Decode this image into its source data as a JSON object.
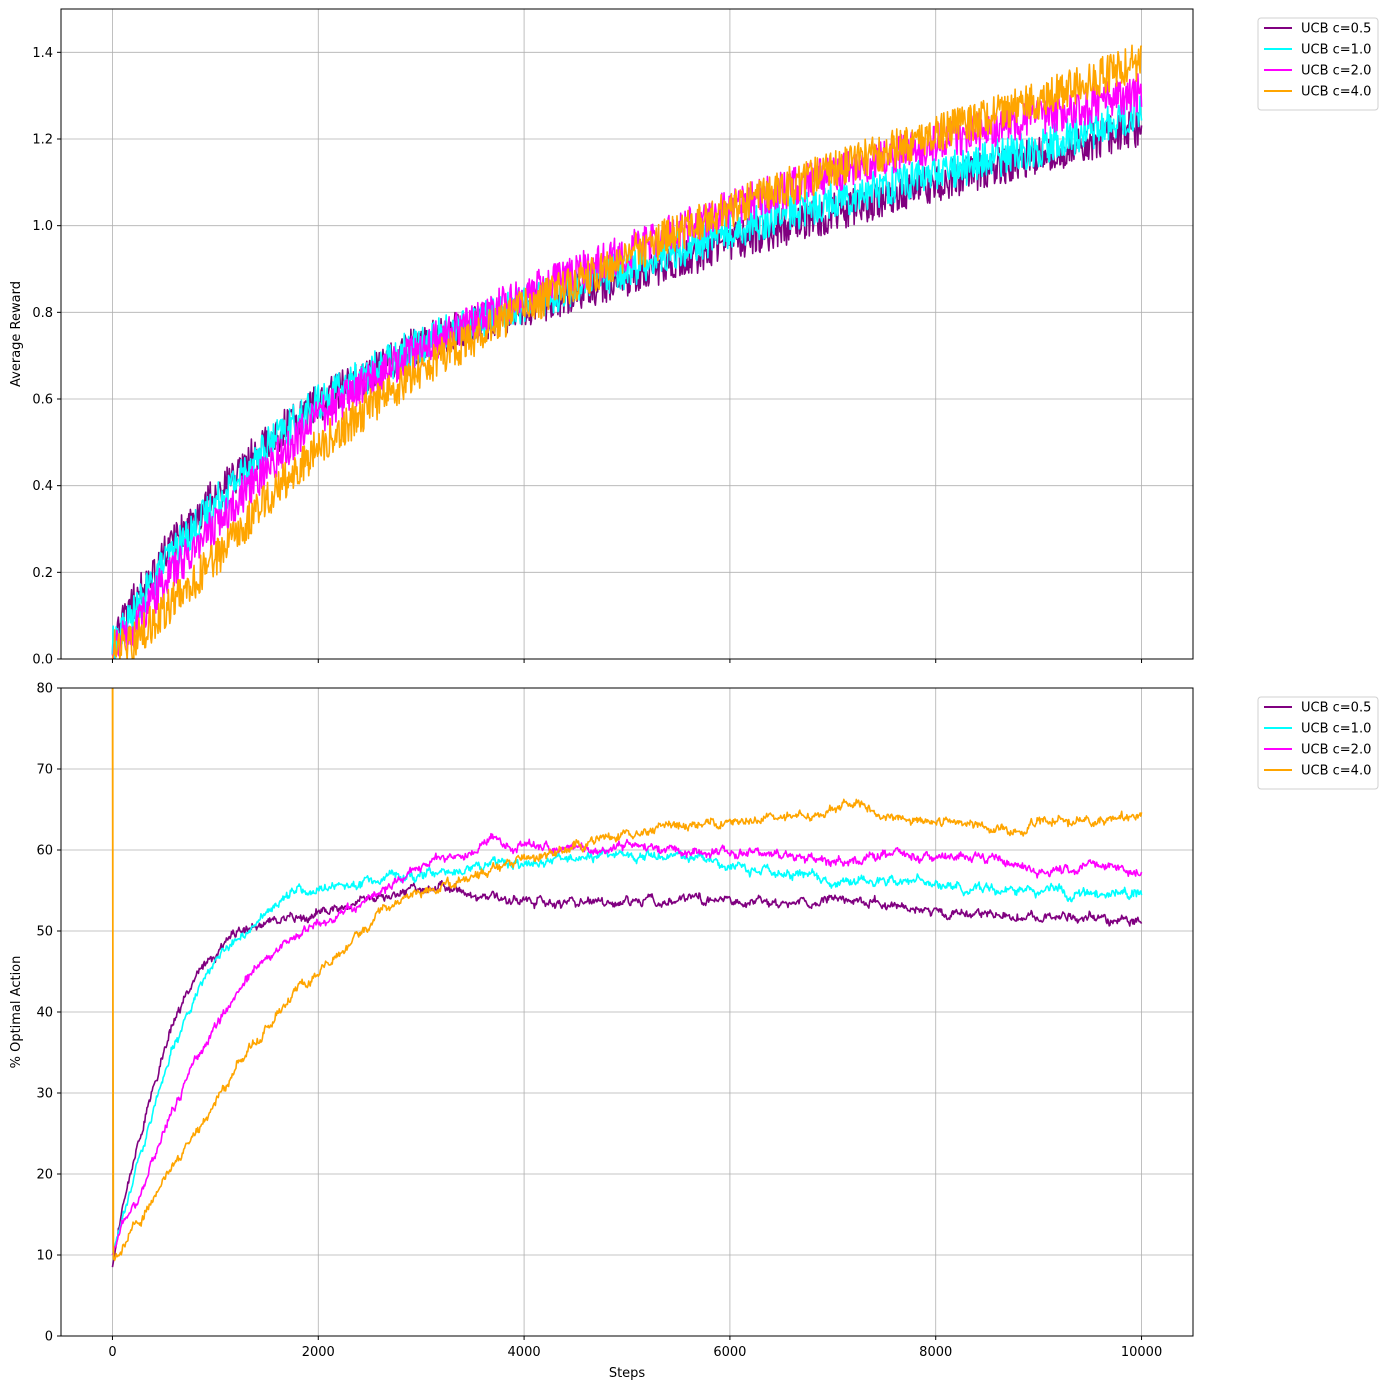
{
  "chart_data": [
    {
      "type": "line",
      "xlabel": "",
      "ylabel": "Average Reward",
      "xlim": [
        -500,
        10500
      ],
      "ylim": [
        0.0,
        1.5
      ],
      "xticks": [
        0,
        2000,
        4000,
        6000,
        8000,
        10000
      ],
      "xtick_labels_visible": false,
      "yticks": [
        0.0,
        0.2,
        0.4,
        0.6,
        0.8,
        1.0,
        1.2,
        1.4
      ],
      "ytick_labels": [
        "0.0",
        "0.2",
        "0.4",
        "0.6",
        "0.8",
        "1.0",
        "1.2",
        "1.4"
      ],
      "grid": true,
      "legend_position": "outside-top-right",
      "noise_amplitude": 0.045,
      "series": [
        {
          "name": "UCB c=0.5",
          "color": "#800080",
          "x": [
            0,
            200,
            500,
            1000,
            1500,
            2000,
            3000,
            4000,
            5000,
            6000,
            7000,
            8000,
            9000,
            10000
          ],
          "y": [
            0.03,
            0.13,
            0.24,
            0.38,
            0.5,
            0.59,
            0.73,
            0.81,
            0.88,
            0.96,
            1.03,
            1.1,
            1.16,
            1.23
          ]
        },
        {
          "name": "UCB c=1.0",
          "color": "#00FFFF",
          "x": [
            0,
            200,
            500,
            1000,
            1500,
            2000,
            3000,
            4000,
            5000,
            6000,
            7000,
            8000,
            9000,
            10000
          ],
          "y": [
            0.03,
            0.1,
            0.22,
            0.36,
            0.49,
            0.59,
            0.73,
            0.82,
            0.9,
            0.99,
            1.06,
            1.12,
            1.18,
            1.26
          ]
        },
        {
          "name": "UCB c=2.0",
          "color": "#FF00FF",
          "x": [
            0,
            200,
            500,
            1000,
            1500,
            2000,
            3000,
            4000,
            5000,
            6000,
            7000,
            8000,
            9000,
            10000
          ],
          "y": [
            0.03,
            0.07,
            0.18,
            0.31,
            0.44,
            0.56,
            0.72,
            0.84,
            0.94,
            1.04,
            1.12,
            1.19,
            1.25,
            1.31
          ]
        },
        {
          "name": "UCB c=4.0",
          "color": "#FFA500",
          "x": [
            0,
            200,
            500,
            1000,
            1500,
            2000,
            3000,
            4000,
            5000,
            6000,
            7000,
            8000,
            9000,
            10000
          ],
          "y": [
            0.02,
            0.04,
            0.11,
            0.23,
            0.37,
            0.49,
            0.67,
            0.81,
            0.93,
            1.04,
            1.13,
            1.21,
            1.29,
            1.38
          ]
        }
      ]
    },
    {
      "type": "line",
      "xlabel": "Steps",
      "ylabel": "% Optimal Action",
      "xlim": [
        -500,
        10500
      ],
      "ylim": [
        0,
        80
      ],
      "xticks": [
        0,
        2000,
        4000,
        6000,
        8000,
        10000
      ],
      "xtick_labels": [
        "0",
        "2000",
        "4000",
        "6000",
        "8000",
        "10000"
      ],
      "yticks": [
        0,
        10,
        20,
        30,
        40,
        50,
        60,
        70,
        80
      ],
      "ytick_labels": [
        "0",
        "10",
        "20",
        "30",
        "40",
        "50",
        "60",
        "70",
        "80"
      ],
      "grid": true,
      "legend_position": "outside-top-right",
      "noise_amplitude": 0.6,
      "series": [
        {
          "name": "UCB c=0.5",
          "color": "#800080",
          "x": [
            0,
            100,
            250,
            400,
            600,
            800,
            1000,
            1200,
            1500,
            2000,
            2500,
            3000,
            3200,
            3500,
            4000,
            4500,
            5000,
            5500,
            6000,
            6500,
            7000,
            7500,
            8000,
            8500,
            9000,
            9500,
            10000
          ],
          "y": [
            8.5,
            16,
            24,
            31,
            39,
            44,
            47,
            50,
            51,
            52,
            54,
            55,
            56,
            54.5,
            53.5,
            53.5,
            53.5,
            54,
            53.5,
            53.5,
            54,
            53.5,
            52.5,
            52,
            51.5,
            52,
            51
          ]
        },
        {
          "name": "UCB c=1.0",
          "color": "#00FFFF",
          "x": [
            0,
            100,
            250,
            400,
            600,
            800,
            1000,
            1200,
            1500,
            1800,
            2000,
            2500,
            3000,
            3500,
            4000,
            4500,
            5000,
            5500,
            6000,
            6500,
            7000,
            7500,
            8000,
            8500,
            9000,
            9500,
            10000
          ],
          "y": [
            10,
            15,
            21,
            28,
            36,
            42,
            46,
            49,
            52,
            55,
            55,
            56,
            57,
            58,
            58.5,
            59,
            59.5,
            59,
            58,
            57,
            56.5,
            56,
            56,
            55,
            55,
            54.5,
            55
          ]
        },
        {
          "name": "UCB c=2.0",
          "color": "#FF00FF",
          "x": [
            0,
            100,
            250,
            400,
            600,
            800,
            1000,
            1200,
            1500,
            2000,
            2500,
            3000,
            3500,
            3700,
            4000,
            4500,
            5000,
            5500,
            6000,
            6500,
            7000,
            7500,
            8000,
            8500,
            9000,
            9500,
            10000
          ],
          "y": [
            10,
            14,
            17,
            22,
            28,
            34,
            38,
            42,
            47,
            51,
            54,
            58,
            60,
            61,
            60.5,
            60,
            60.5,
            60,
            59.5,
            59,
            58.5,
            59,
            59.5,
            59,
            57.5,
            58,
            57
          ]
        },
        {
          "name": "UCB c=4.0",
          "color": "#FFA500",
          "x": [
            0,
            3,
            6,
            10,
            100,
            250,
            400,
            600,
            800,
            1000,
            1200,
            1500,
            1800,
            2000,
            2200,
            2500,
            2700,
            3000,
            3500,
            4000,
            4500,
            5000,
            5500,
            6000,
            6500,
            7000,
            7200,
            7500,
            8000,
            8500,
            8800,
            9000,
            9500,
            10000
          ],
          "y": [
            80,
            80,
            12,
            9.5,
            11,
            14,
            17,
            21,
            25,
            29,
            33,
            38,
            43,
            45,
            47,
            51,
            53,
            55,
            56.5,
            59,
            60.5,
            62,
            63,
            63.5,
            64,
            65,
            66,
            64,
            63.5,
            63,
            62,
            64,
            63.5,
            64.5
          ]
        }
      ]
    }
  ]
}
